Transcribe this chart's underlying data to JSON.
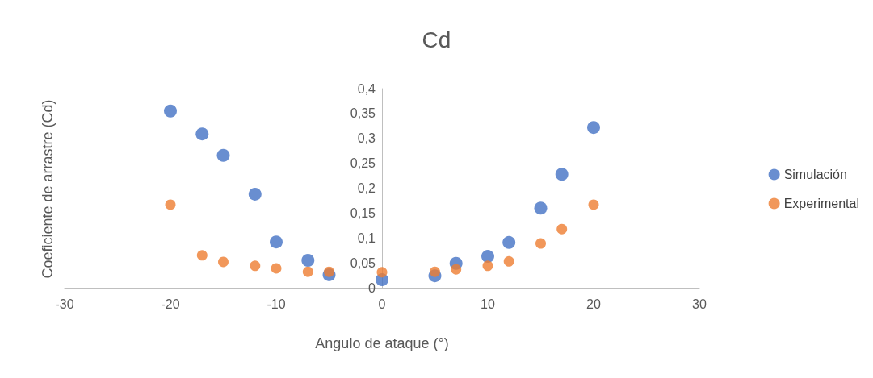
{
  "chart_data": {
    "type": "scatter",
    "title": "Cd",
    "xlabel": "Angulo de ataque (°)",
    "ylabel": "Coeficiente de arrastre (Cd)",
    "x": [
      -20,
      -17,
      -15,
      -12,
      -10,
      -7,
      -5,
      0,
      5,
      7,
      10,
      12,
      15,
      17,
      20
    ],
    "series": [
      {
        "name": "Simulación",
        "color": "#4472c4",
        "values": [
          0.355,
          0.309,
          0.266,
          0.188,
          0.092,
          0.055,
          0.026,
          0.016,
          0.024,
          0.049,
          0.063,
          0.091,
          0.16,
          0.228,
          0.322
        ]
      },
      {
        "name": "Experimental",
        "color": "#ed7d31",
        "values": [
          0.167,
          0.065,
          0.052,
          0.044,
          0.039,
          0.032,
          0.032,
          0.031,
          0.032,
          0.037,
          0.044,
          0.053,
          0.089,
          0.118,
          0.167
        ]
      }
    ],
    "xlim": [
      -30,
      30
    ],
    "xticks": [
      -30,
      -20,
      -10,
      0,
      10,
      20,
      30
    ],
    "ylim": [
      0,
      0.4
    ],
    "yticks": [
      0,
      {
        "value": 0.05,
        "label": "0,05"
      },
      {
        "value": 0.1,
        "label": "0,1"
      },
      {
        "value": 0.15,
        "label": "0,15"
      },
      {
        "value": 0.2,
        "label": "0,2"
      },
      {
        "value": 0.25,
        "label": "0,25"
      },
      {
        "value": 0.3,
        "label": "0,3"
      },
      {
        "value": 0.35,
        "label": "0,35"
      },
      {
        "value": 0.4,
        "label": "0,4"
      }
    ],
    "grid": false,
    "legend": "right",
    "marker": "circle"
  }
}
